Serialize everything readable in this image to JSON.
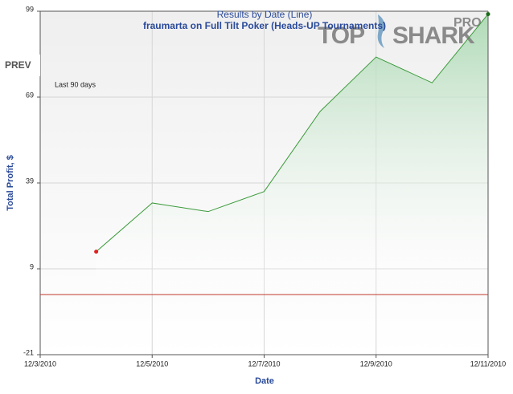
{
  "chart_data": {
    "type": "line",
    "title": "Results by Date (Line)",
    "subtitle": "fraumarta on Full Tilt Poker (Heads-UP Tournaments)",
    "period_label": "Last 90 days",
    "nav_label": "PREV",
    "logo": {
      "left": "TOP",
      "right": "SHARK",
      "badge": "PRO"
    },
    "xlabel": "Date",
    "ylabel": "Total Profit, $",
    "x": [
      "12/4/2010",
      "12/5/2010",
      "12/6/2010",
      "12/7/2010",
      "12/8/2010",
      "12/9/2010",
      "12/10/2010",
      "12/11/2010"
    ],
    "values": [
      15,
      32,
      29,
      36,
      64,
      83,
      74,
      98
    ],
    "color": "#3a9a3a",
    "start_marker_color": "#e02020",
    "end_marker_color": "#1a6a1a",
    "xlim": [
      "12/3/2010",
      "12/11/2010"
    ],
    "xticks": [
      "12/3/2010",
      "12/5/2010",
      "12/7/2010",
      "12/9/2010",
      "12/11/2010"
    ],
    "ylim": [
      -21,
      99
    ],
    "yticks": [
      99,
      69,
      39,
      9,
      -21
    ],
    "reference_line": {
      "value": 0,
      "color": "#c0392b"
    },
    "grid": true
  }
}
